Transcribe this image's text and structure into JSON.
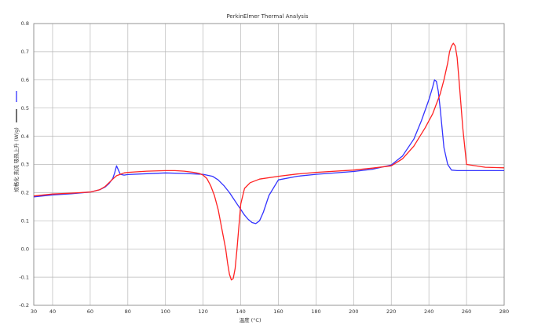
{
  "chart_data": {
    "type": "line",
    "title": "PerkinElmer Thermal Analysis",
    "xlabel": "温度 (°C)",
    "ylabel": "规格化 热流 吸热上升 (W/g)",
    "xlim": [
      30,
      280
    ],
    "ylim": [
      -0.2,
      0.8
    ],
    "xticks": [
      30,
      40,
      60,
      80,
      100,
      120,
      140,
      160,
      180,
      200,
      220,
      240,
      260,
      280
    ],
    "yticks": [
      -0.2,
      -0.1,
      0.0,
      0.1,
      0.2,
      0.3,
      0.4,
      0.5,
      0.6,
      0.7,
      0.8
    ],
    "grid": true,
    "legend": "left-side markers",
    "series": [
      {
        "color": "#3333ff",
        "x": [
          30,
          40,
          50,
          60,
          65,
          68,
          70,
          72,
          73,
          74,
          75,
          76,
          78,
          80,
          90,
          100,
          110,
          120,
          125,
          128,
          131,
          134,
          136,
          138,
          140,
          142,
          144,
          146,
          148,
          150,
          152,
          155,
          160,
          170,
          180,
          200,
          210,
          220,
          226,
          232,
          236,
          240,
          242,
          243,
          244,
          245,
          246,
          247,
          248,
          250,
          252,
          255,
          260,
          270,
          280
        ],
        "y": [
          0.185,
          0.192,
          0.196,
          0.202,
          0.21,
          0.22,
          0.232,
          0.25,
          0.27,
          0.295,
          0.28,
          0.265,
          0.262,
          0.264,
          0.267,
          0.27,
          0.268,
          0.265,
          0.258,
          0.245,
          0.225,
          0.2,
          0.18,
          0.16,
          0.14,
          0.12,
          0.105,
          0.094,
          0.09,
          0.1,
          0.13,
          0.19,
          0.245,
          0.258,
          0.265,
          0.275,
          0.283,
          0.298,
          0.33,
          0.39,
          0.455,
          0.53,
          0.575,
          0.6,
          0.595,
          0.56,
          0.5,
          0.43,
          0.36,
          0.3,
          0.28,
          0.278,
          0.278,
          0.278,
          0.278
        ]
      },
      {
        "color": "#ff2222",
        "x": [
          30,
          40,
          50,
          60,
          65,
          68,
          70,
          72,
          74,
          76,
          78,
          80,
          90,
          100,
          105,
          110,
          115,
          118,
          120,
          122,
          124,
          126,
          128,
          130,
          132,
          133,
          134,
          135,
          136,
          137,
          138,
          139,
          140,
          142,
          145,
          150,
          160,
          170,
          180,
          200,
          210,
          220,
          226,
          232,
          238,
          242,
          246,
          248,
          250,
          251,
          252,
          253,
          254,
          255,
          256,
          258,
          260,
          270,
          280
        ],
        "y": [
          0.188,
          0.195,
          0.198,
          0.202,
          0.21,
          0.222,
          0.235,
          0.248,
          0.26,
          0.265,
          0.27,
          0.272,
          0.276,
          0.278,
          0.278,
          0.276,
          0.272,
          0.268,
          0.262,
          0.25,
          0.225,
          0.19,
          0.14,
          0.07,
          0.0,
          -0.05,
          -0.09,
          -0.11,
          -0.105,
          -0.07,
          0.0,
          0.08,
          0.16,
          0.215,
          0.235,
          0.248,
          0.258,
          0.266,
          0.272,
          0.28,
          0.287,
          0.295,
          0.32,
          0.365,
          0.43,
          0.48,
          0.55,
          0.6,
          0.66,
          0.7,
          0.72,
          0.73,
          0.72,
          0.68,
          0.6,
          0.43,
          0.3,
          0.29,
          0.288
        ]
      }
    ]
  }
}
